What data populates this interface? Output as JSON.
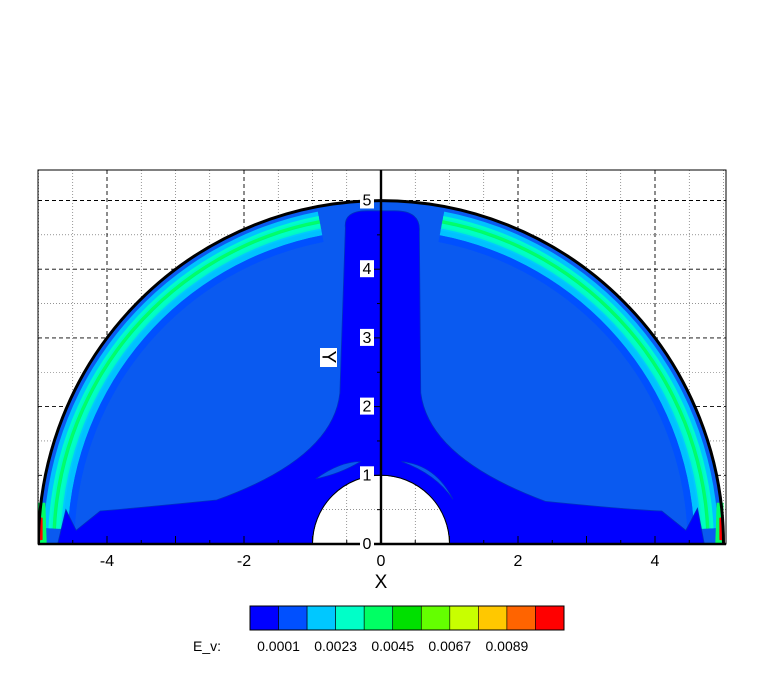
{
  "chart_data": {
    "type": "heatmap",
    "title": "",
    "xlabel": "X",
    "ylabel": "Y",
    "xlim": [
      -5,
      5
    ],
    "ylim": [
      0,
      5.4
    ],
    "grid": true,
    "x_ticks": [
      {
        "value": -4,
        "label": "-4"
      },
      {
        "value": -2,
        "label": "-2"
      },
      {
        "value": 0,
        "label": "0"
      },
      {
        "value": 2,
        "label": "2"
      },
      {
        "value": 4,
        "label": "4"
      }
    ],
    "y_ticks": [
      {
        "value": 0,
        "label": "0"
      },
      {
        "value": 1,
        "label": "1"
      },
      {
        "value": 2,
        "label": "2"
      },
      {
        "value": 3,
        "label": "3"
      },
      {
        "value": 4,
        "label": "4"
      },
      {
        "value": 5,
        "label": "5"
      }
    ],
    "geometry": {
      "outer_radius": 5,
      "inner_radius": 1,
      "center": [
        0,
        0
      ]
    },
    "colorbar": {
      "variable": "E_v:",
      "levels": [
        0.0001,
        0.0012,
        0.0023,
        0.0034,
        0.0045,
        0.0056,
        0.0067,
        0.0078,
        0.0089,
        0.01
      ],
      "colors": [
        "#0000ff",
        "#0050ff",
        "#00c8ff",
        "#00ffc8",
        "#00ff64",
        "#00e000",
        "#64ff00",
        "#c8ff00",
        "#ffc800",
        "#ff6400",
        "#ff0000"
      ],
      "labels": [
        {
          "value": 0.0001,
          "label": "0.0001"
        },
        {
          "value": 0.0023,
          "label": "0.0023"
        },
        {
          "value": 0.0045,
          "label": "0.0045"
        },
        {
          "value": 0.0067,
          "label": "0.0067"
        },
        {
          "value": 0.0089,
          "label": "0.0089"
        }
      ]
    },
    "field_colors": {
      "background": "#0a5af0",
      "low": "#0000ff",
      "mid": "#00c8ff",
      "ring": "#00d8a0",
      "high": "#ff0000"
    }
  }
}
